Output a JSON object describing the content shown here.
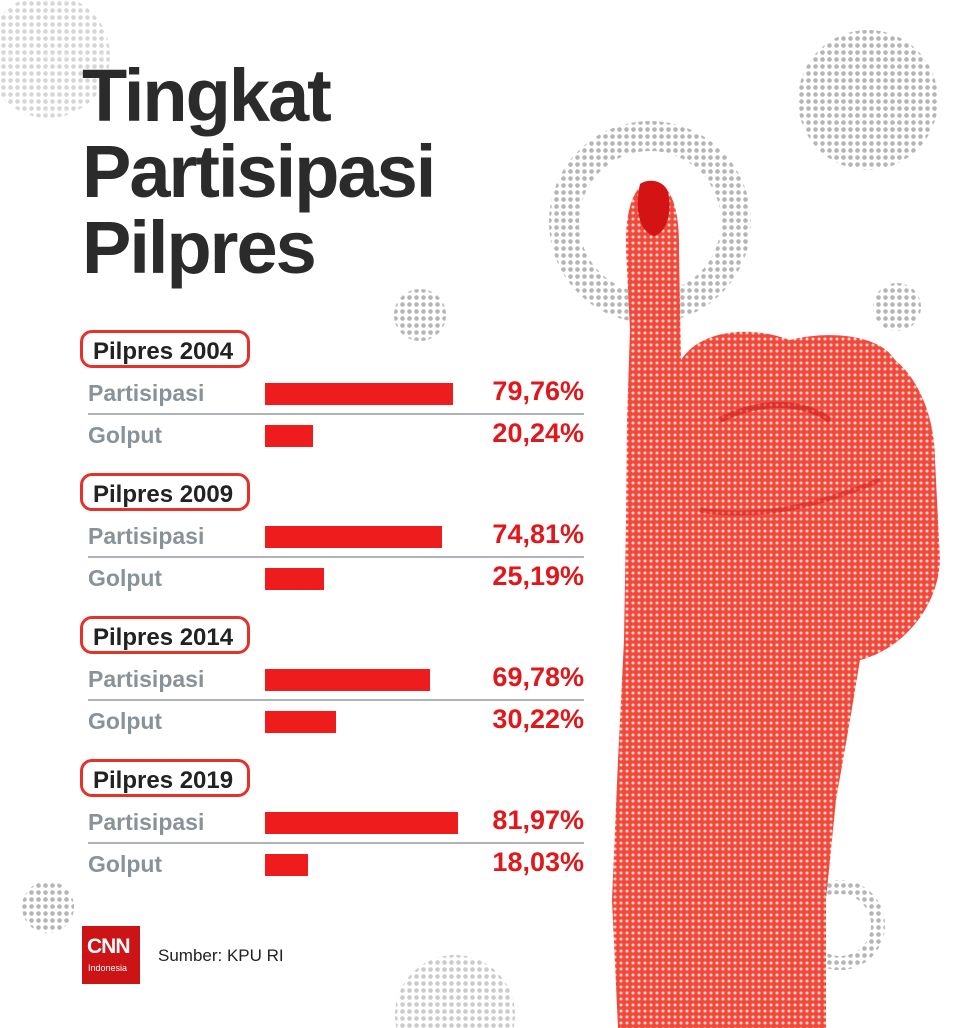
{
  "title_lines": [
    "Tingkat",
    "Partisipasi",
    "Pilpres"
  ],
  "source": "Sumber: KPU RI",
  "logo": {
    "main": "CNN",
    "sub": "Indonesia"
  },
  "colors": {
    "accent": "#ee1c1c",
    "title": "#2b2b2b",
    "label": "#8a9299"
  },
  "chart_data": {
    "type": "bar",
    "orientation": "horizontal",
    "groups": [
      {
        "name": "Pilpres 2004",
        "rows": [
          {
            "label": "Partisipasi",
            "value": 79.76,
            "text": "79,76%"
          },
          {
            "label": "Golput",
            "value": 20.24,
            "text": "20,24%"
          }
        ]
      },
      {
        "name": "Pilpres 2009",
        "rows": [
          {
            "label": "Partisipasi",
            "value": 74.81,
            "text": "74,81%"
          },
          {
            "label": "Golput",
            "value": 25.19,
            "text": "25,19%"
          }
        ]
      },
      {
        "name": "Pilpres 2014",
        "rows": [
          {
            "label": "Partisipasi",
            "value": 69.78,
            "text": "69,78%"
          },
          {
            "label": "Golput",
            "value": 30.22,
            "text": "30,22%"
          }
        ]
      },
      {
        "name": "Pilpres 2019",
        "rows": [
          {
            "label": "Partisipasi",
            "value": 81.97,
            "text": "81,97%"
          },
          {
            "label": "Golput",
            "value": 18.03,
            "text": "18,03%"
          }
        ]
      }
    ],
    "xlim": [
      0,
      100
    ],
    "grid": false
  }
}
